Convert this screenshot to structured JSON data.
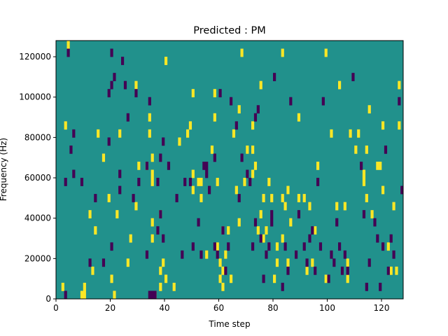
{
  "chart_data": {
    "type": "heatmap",
    "title": "Predicted : PM",
    "xlabel": "Time step",
    "ylabel": "Frequency (Hz)",
    "xlim": [
      0,
      128
    ],
    "ylim": [
      0,
      128000
    ],
    "x_ticks": [
      0,
      20,
      40,
      60,
      80,
      100,
      120
    ],
    "x_tick_labels": [
      "0",
      "20",
      "40",
      "60",
      "80",
      "100",
      "120"
    ],
    "y_ticks": [
      0,
      20000,
      40000,
      60000,
      80000,
      100000,
      120000
    ],
    "y_tick_labels": [
      "0",
      "20000",
      "40000",
      "60000",
      "80000",
      "100000",
      "120000"
    ],
    "grid": false,
    "n_time_steps": 128,
    "n_freq_bins": 32,
    "freq_bin_width_hz": 4000,
    "value_levels": [
      -1,
      0,
      1
    ],
    "colors": {
      "low": "#440154",
      "mid": "#21918c",
      "high": "#fde725"
    },
    "cells_high": [
      [
        2,
        1
      ],
      [
        3,
        21
      ],
      [
        4,
        31
      ],
      [
        9,
        0
      ],
      [
        10,
        0
      ],
      [
        10,
        1
      ],
      [
        12,
        10
      ],
      [
        13,
        3
      ],
      [
        14,
        8
      ],
      [
        15,
        20
      ],
      [
        17,
        17
      ],
      [
        19,
        12
      ],
      [
        20,
        2
      ],
      [
        21,
        0
      ],
      [
        22,
        10
      ],
      [
        23,
        20
      ],
      [
        26,
        4
      ],
      [
        27,
        7
      ],
      [
        29,
        11
      ],
      [
        29,
        26
      ],
      [
        30,
        16
      ],
      [
        33,
        16
      ],
      [
        34,
        20
      ],
      [
        34,
        22
      ],
      [
        35,
        17
      ],
      [
        35,
        15
      ],
      [
        35,
        14
      ],
      [
        35,
        9
      ],
      [
        35,
        7
      ],
      [
        36,
        0
      ],
      [
        38,
        1
      ],
      [
        38,
        3
      ],
      [
        38,
        10
      ],
      [
        39,
        4
      ],
      [
        40,
        2
      ],
      [
        40,
        29
      ],
      [
        43,
        1
      ],
      [
        45,
        19
      ],
      [
        48,
        20
      ],
      [
        49,
        21
      ],
      [
        50,
        13
      ],
      [
        50,
        15
      ],
      [
        50,
        25
      ],
      [
        52,
        14
      ],
      [
        53,
        14
      ],
      [
        53,
        12
      ],
      [
        55,
        5
      ],
      [
        57,
        18
      ],
      [
        58,
        22
      ],
      [
        58,
        25
      ],
      [
        59,
        14
      ],
      [
        59,
        6
      ],
      [
        60,
        4
      ],
      [
        60,
        2
      ],
      [
        61,
        1
      ],
      [
        61,
        3
      ],
      [
        61,
        8
      ],
      [
        62,
        5
      ],
      [
        63,
        8
      ],
      [
        64,
        2
      ],
      [
        65,
        20
      ],
      [
        66,
        13
      ],
      [
        67,
        9
      ],
      [
        67,
        23
      ],
      [
        68,
        30
      ],
      [
        69,
        14
      ],
      [
        70,
        18
      ],
      [
        72,
        15
      ],
      [
        72,
        18
      ],
      [
        72,
        21
      ],
      [
        73,
        16
      ],
      [
        74,
        8
      ],
      [
        75,
        10
      ],
      [
        75,
        26
      ],
      [
        76,
        12
      ],
      [
        76,
        7
      ],
      [
        77,
        8
      ],
      [
        78,
        14
      ],
      [
        79,
        12
      ],
      [
        80,
        2
      ],
      [
        81,
        4
      ],
      [
        81,
        6
      ],
      [
        83,
        7
      ],
      [
        83,
        30
      ],
      [
        83,
        12
      ],
      [
        84,
        11
      ],
      [
        85,
        4
      ],
      [
        85,
        13
      ],
      [
        86,
        9
      ],
      [
        89,
        12
      ],
      [
        89,
        22
      ],
      [
        91,
        12
      ],
      [
        92,
        3
      ],
      [
        93,
        11
      ],
      [
        94,
        4
      ],
      [
        95,
        8
      ],
      [
        96,
        16
      ],
      [
        99,
        2
      ],
      [
        99,
        30
      ],
      [
        101,
        20
      ],
      [
        103,
        11
      ],
      [
        104,
        26
      ],
      [
        106,
        11
      ],
      [
        107,
        2
      ],
      [
        107,
        4
      ],
      [
        108,
        20
      ],
      [
        110,
        18
      ],
      [
        111,
        20
      ],
      [
        113,
        14
      ],
      [
        113,
        15
      ],
      [
        114,
        12
      ],
      [
        114,
        18
      ],
      [
        115,
        23
      ],
      [
        116,
        10
      ],
      [
        118,
        16
      ],
      [
        119,
        16
      ],
      [
        120,
        21
      ],
      [
        120,
        13
      ],
      [
        122,
        6
      ],
      [
        123,
        3
      ],
      [
        124,
        11
      ],
      [
        125,
        3
      ],
      [
        126,
        21
      ],
      [
        126,
        26
      ]
    ],
    "cells_low": [
      [
        3,
        0
      ],
      [
        3,
        14
      ],
      [
        4,
        30
      ],
      [
        5,
        18
      ],
      [
        6,
        15
      ],
      [
        6,
        20
      ],
      [
        9,
        14
      ],
      [
        12,
        4
      ],
      [
        14,
        12
      ],
      [
        17,
        4
      ],
      [
        19,
        19
      ],
      [
        19,
        25
      ],
      [
        20,
        6
      ],
      [
        20,
        26
      ],
      [
        20,
        30
      ],
      [
        21,
        27
      ],
      [
        23,
        15
      ],
      [
        23,
        13
      ],
      [
        24,
        29
      ],
      [
        25,
        26
      ],
      [
        26,
        22
      ],
      [
        28,
        12
      ],
      [
        29,
        25
      ],
      [
        30,
        14
      ],
      [
        33,
        5
      ],
      [
        33,
        16
      ],
      [
        34,
        24
      ],
      [
        34,
        0
      ],
      [
        35,
        0
      ],
      [
        36,
        0
      ],
      [
        37,
        8
      ],
      [
        37,
        14
      ],
      [
        38,
        17
      ],
      [
        38,
        10
      ],
      [
        39,
        7
      ],
      [
        39,
        19
      ],
      [
        41,
        16
      ],
      [
        44,
        12
      ],
      [
        46,
        5
      ],
      [
        47,
        14
      ],
      [
        49,
        14
      ],
      [
        50,
        6
      ],
      [
        52,
        9
      ],
      [
        53,
        5
      ],
      [
        54,
        16
      ],
      [
        55,
        16
      ],
      [
        55,
        15
      ],
      [
        56,
        13
      ],
      [
        58,
        17
      ],
      [
        58,
        6
      ],
      [
        59,
        5
      ],
      [
        60,
        25
      ],
      [
        61,
        8
      ],
      [
        62,
        3
      ],
      [
        63,
        6
      ],
      [
        64,
        24
      ],
      [
        66,
        21
      ],
      [
        67,
        12
      ],
      [
        68,
        17
      ],
      [
        70,
        15
      ],
      [
        71,
        14
      ],
      [
        72,
        6
      ],
      [
        73,
        9
      ],
      [
        73,
        22
      ],
      [
        74,
        23
      ],
      [
        75,
        7
      ],
      [
        76,
        2
      ],
      [
        77,
        5
      ],
      [
        78,
        6
      ],
      [
        79,
        9
      ],
      [
        79,
        10
      ],
      [
        80,
        27
      ],
      [
        83,
        1
      ],
      [
        84,
        6
      ],
      [
        85,
        3
      ],
      [
        86,
        24
      ],
      [
        88,
        5
      ],
      [
        89,
        10
      ],
      [
        91,
        6
      ],
      [
        92,
        4
      ],
      [
        93,
        7
      ],
      [
        94,
        8
      ],
      [
        95,
        3
      ],
      [
        96,
        14
      ],
      [
        97,
        6
      ],
      [
        98,
        24
      ],
      [
        100,
        2
      ],
      [
        101,
        5
      ],
      [
        102,
        4
      ],
      [
        103,
        9
      ],
      [
        104,
        6
      ],
      [
        105,
        3
      ],
      [
        106,
        5
      ],
      [
        107,
        3
      ],
      [
        109,
        27
      ],
      [
        112,
        16
      ],
      [
        113,
        10
      ],
      [
        114,
        1
      ],
      [
        115,
        4
      ],
      [
        117,
        9
      ],
      [
        118,
        7
      ],
      [
        119,
        1
      ],
      [
        120,
        6
      ],
      [
        121,
        18
      ],
      [
        122,
        3
      ],
      [
        123,
        7
      ],
      [
        124,
        5
      ],
      [
        126,
        24
      ],
      [
        127,
        13
      ]
    ]
  }
}
